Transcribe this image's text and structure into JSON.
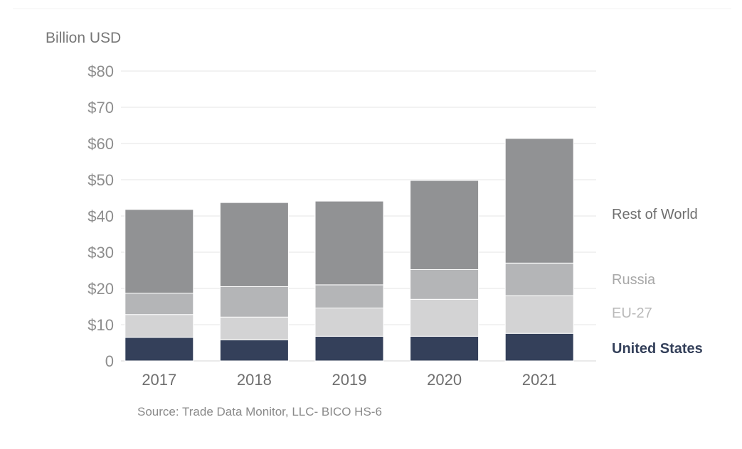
{
  "chart_data": {
    "type": "bar",
    "stacked": true,
    "ylabel": "Billion USD",
    "source": "Source: Trade Data Monitor, LLC- BICO HS-6",
    "categories": [
      "2017",
      "2018",
      "2019",
      "2020",
      "2021"
    ],
    "y_tick_labels": [
      "0",
      "$10",
      "$20",
      "$30",
      "$40",
      "$50",
      "$60",
      "$70",
      "$80"
    ],
    "y_tick_values": [
      0,
      10,
      20,
      30,
      40,
      50,
      60,
      70,
      80
    ],
    "ylim": [
      0,
      80
    ],
    "grid": true,
    "legend_placement": "right",
    "series": [
      {
        "name": "United States",
        "color": "#34405a",
        "values": [
          6.5,
          5.8,
          6.8,
          6.8,
          7.6
        ]
      },
      {
        "name": "EU-27",
        "color": "#d3d3d4",
        "values": [
          6.3,
          6.3,
          7.8,
          10.2,
          10.4
        ]
      },
      {
        "name": "Russia",
        "color": "#b4b5b7",
        "values": [
          5.9,
          8.4,
          6.4,
          8.2,
          9.0
        ]
      },
      {
        "name": "Rest of World",
        "color": "#919294",
        "values": [
          23.1,
          23.2,
          23.1,
          24.6,
          34.4
        ]
      }
    ],
    "legend_text_colors": {
      "United States": "#34405a",
      "EU-27": "#b9b9b9",
      "Russia": "#a8a8a8",
      "Rest of World": "#6f6f6f"
    }
  }
}
